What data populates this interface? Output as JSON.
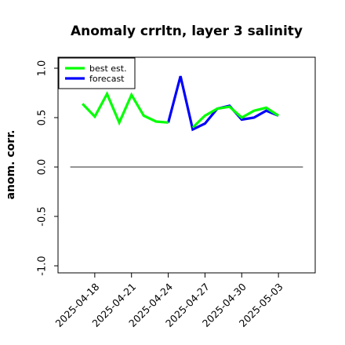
{
  "chart_data": {
    "type": "line",
    "title": "Anomaly crrltn, layer 3 salinity",
    "xlabel": "",
    "ylabel": "anom. corr.",
    "ylim": [
      -1.0,
      1.0
    ],
    "yticks": [
      "-1.0",
      "-0.5",
      "0.0",
      "0.5",
      "1.0"
    ],
    "ytick_values": [
      -1.0,
      -0.5,
      0.0,
      0.5,
      1.0
    ],
    "xlim": [
      "2025-04-15",
      "2025-05-06"
    ],
    "xticks": [
      "2025-04-18",
      "2025-04-21",
      "2025-04-24",
      "2025-04-27",
      "2025-04-30",
      "2025-05-03"
    ],
    "highlight_tick": "2025-04-24",
    "highlight_color": "#228B22",
    "reference_line": 0.0,
    "grid": false,
    "legend_position": "top-left",
    "series": [
      {
        "name": "best est.",
        "color": "#00ff00",
        "x": [
          "2025-04-17",
          "2025-04-18",
          "2025-04-19",
          "2025-04-20",
          "2025-04-21",
          "2025-04-22",
          "2025-04-23",
          "2025-04-24"
        ],
        "values": [
          0.64,
          0.51,
          0.74,
          0.45,
          0.73,
          0.52,
          0.46,
          0.45
        ]
      },
      {
        "name": "forecast",
        "color": "#0000ff",
        "x": [
          "2025-04-24",
          "2025-04-25",
          "2025-04-26",
          "2025-04-27",
          "2025-04-28",
          "2025-04-29",
          "2025-04-30",
          "2025-05-01",
          "2025-05-02",
          "2025-05-03"
        ],
        "values": [
          0.45,
          0.92,
          0.38,
          0.44,
          0.59,
          0.62,
          0.48,
          0.5,
          0.57,
          0.52
        ]
      },
      {
        "name": "",
        "color": "#00ff00",
        "x": [
          "2025-04-26",
          "2025-04-27",
          "2025-04-28",
          "2025-04-29",
          "2025-04-30",
          "2025-05-01",
          "2025-05-02",
          "2025-05-03"
        ],
        "values": [
          0.4,
          0.52,
          0.59,
          0.61,
          0.5,
          0.57,
          0.6,
          0.52
        ]
      }
    ]
  }
}
